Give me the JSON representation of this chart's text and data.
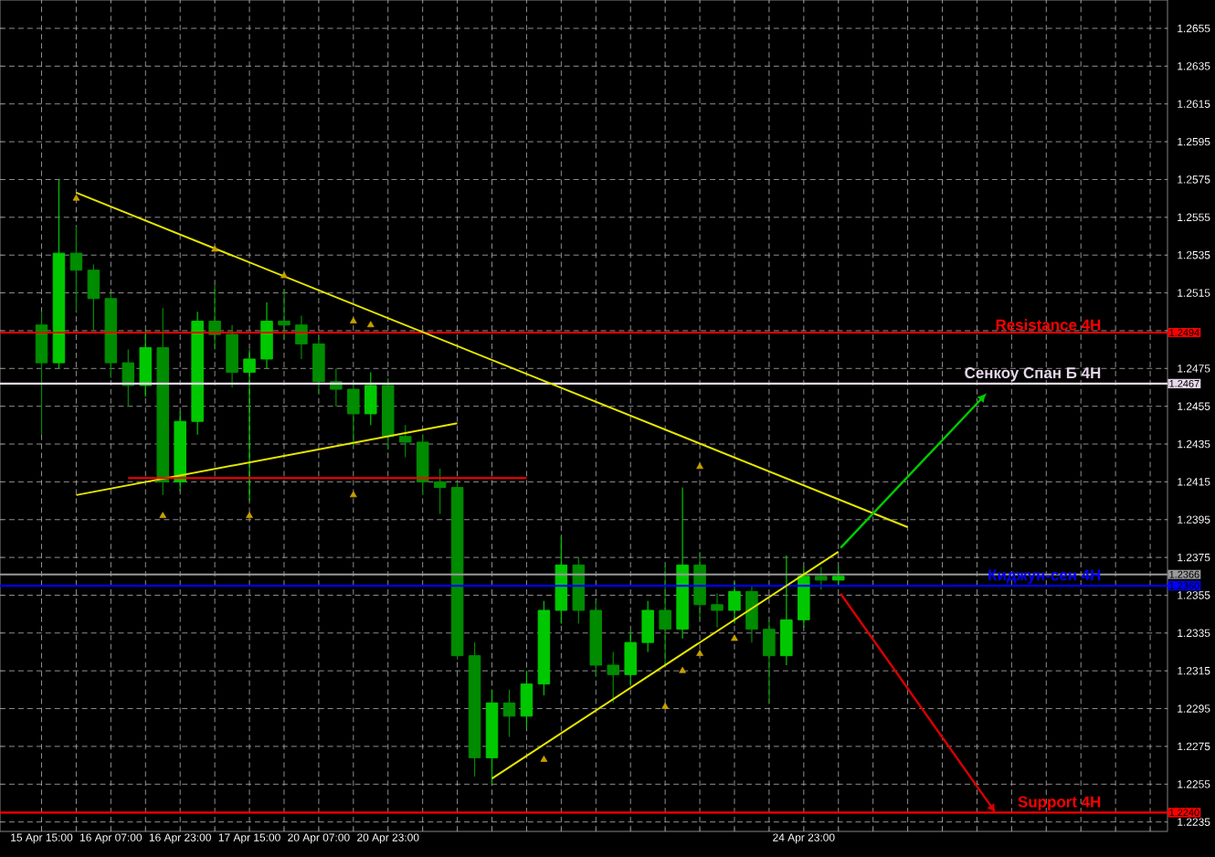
{
  "chart_data": {
    "type": "candlestick",
    "categories": [
      "15 Apr 15:00",
      null,
      null,
      null,
      "16 Apr 07:00",
      null,
      null,
      null,
      "16 Apr 23:00",
      null,
      null,
      null,
      "17 Apr 15:00",
      null,
      null,
      null,
      "20 Apr 07:00",
      null,
      null,
      null,
      "20 Apr 23:00",
      null,
      null,
      null,
      null,
      null,
      null,
      null,
      null,
      null,
      null,
      null,
      null,
      null,
      null,
      null,
      null,
      null,
      null,
      null,
      null,
      null,
      null,
      null,
      "24 Apr 23:00",
      null,
      null,
      null,
      null,
      null,
      null,
      null,
      null,
      null,
      null,
      null,
      null,
      null,
      null,
      null,
      null,
      null,
      null,
      null,
      null
    ],
    "ohlc": [
      [
        1.2498,
        1.2505,
        1.244,
        1.2478
      ],
      [
        1.2478,
        1.2575,
        1.2475,
        1.2536
      ],
      [
        1.2536,
        1.255,
        1.2505,
        1.2527
      ],
      [
        1.2527,
        1.253,
        1.2495,
        1.2512
      ],
      [
        1.2512,
        1.2515,
        1.247,
        1.2478
      ],
      [
        1.2478,
        1.2485,
        1.2455,
        1.2466
      ],
      [
        1.2466,
        1.2495,
        1.246,
        1.2486
      ],
      [
        1.2486,
        1.2507,
        1.2408,
        1.2415
      ],
      [
        1.2415,
        1.2452,
        1.241,
        1.2447
      ],
      [
        1.2447,
        1.2505,
        1.244,
        1.25
      ],
      [
        1.25,
        1.2519,
        1.2485,
        1.2493
      ],
      [
        1.2493,
        1.2498,
        1.2465,
        1.2473
      ],
      [
        1.2473,
        1.2485,
        1.2405,
        1.248
      ],
      [
        1.248,
        1.251,
        1.2475,
        1.25
      ],
      [
        1.25,
        1.2517,
        1.249,
        1.2498
      ],
      [
        1.2498,
        1.2503,
        1.248,
        1.2488
      ],
      [
        1.2488,
        1.2492,
        1.2462,
        1.2468
      ],
      [
        1.2468,
        1.2475,
        1.2455,
        1.2464
      ],
      [
        1.2464,
        1.2468,
        1.2434,
        1.2451
      ],
      [
        1.2451,
        1.2473,
        1.2445,
        1.2466
      ],
      [
        1.2466,
        1.247,
        1.2432,
        1.2439
      ],
      [
        1.2439,
        1.2445,
        1.2428,
        1.2436
      ],
      [
        1.2436,
        1.244,
        1.2408,
        1.2415
      ],
      [
        1.2415,
        1.2422,
        1.2398,
        1.2412
      ],
      [
        1.2412,
        1.2415,
        1.2321,
        1.2323
      ],
      [
        1.2323,
        1.233,
        1.2259,
        1.2269
      ],
      [
        1.2269,
        1.2305,
        1.2255,
        1.2298
      ],
      [
        1.2298,
        1.2305,
        1.228,
        1.2291
      ],
      [
        1.2291,
        1.2315,
        1.2285,
        1.2308
      ],
      [
        1.2308,
        1.2352,
        1.2302,
        1.2347
      ],
      [
        1.2347,
        1.2386,
        1.234,
        1.2371
      ],
      [
        1.2371,
        1.2375,
        1.234,
        1.2347
      ],
      [
        1.2347,
        1.2352,
        1.2312,
        1.2318
      ],
      [
        1.2318,
        1.2325,
        1.2298,
        1.2313
      ],
      [
        1.2313,
        1.2336,
        1.2308,
        1.233
      ],
      [
        1.233,
        1.2352,
        1.2325,
        1.2347
      ],
      [
        1.2347,
        1.2371,
        1.2318,
        1.2337
      ],
      [
        1.2337,
        1.2412,
        1.2332,
        1.2371
      ],
      [
        1.2371,
        1.2378,
        1.2342,
        1.235
      ],
      [
        1.235,
        1.2356,
        1.2338,
        1.2347
      ],
      [
        1.2347,
        1.2362,
        1.234,
        1.2357
      ],
      [
        1.2357,
        1.236,
        1.233,
        1.2337
      ],
      [
        1.2337,
        1.2342,
        1.2298,
        1.2323
      ],
      [
        1.2323,
        1.2376,
        1.2318,
        1.2342
      ],
      [
        1.2342,
        1.237,
        1.2338,
        1.2365
      ],
      [
        1.2365,
        1.237,
        1.2358,
        1.2363
      ],
      [
        1.2363,
        1.237,
        1.236,
        1.2365
      ],
      null,
      null,
      null,
      null,
      null,
      null,
      null,
      null,
      null,
      null,
      null,
      null,
      null,
      null,
      null,
      null,
      null,
      null
    ],
    "colors": [
      "#008c00",
      "#00c800",
      "#008c00",
      "#008c00",
      "#008c00",
      "#008c00",
      "#00c800",
      "#008c00",
      "#00c800",
      "#00c800",
      "#008c00",
      "#008c00",
      "#00c800",
      "#00c800",
      "#008c00",
      "#008c00",
      "#008c00",
      "#008c00",
      "#008c00",
      "#00c800",
      "#008c00",
      "#008c00",
      "#008c00",
      "#008c00",
      "#008c00",
      "#008c00",
      "#00c800",
      "#008c00",
      "#00c800",
      "#00c800",
      "#00c800",
      "#008c00",
      "#008c00",
      "#008c00",
      "#00c800",
      "#00c800",
      "#008c00",
      "#00c800",
      "#008c00",
      "#008c00",
      "#00c800",
      "#008c00",
      "#008c00",
      "#00c800",
      "#00c800",
      "#008c00",
      "#00c800",
      null,
      null,
      null,
      null,
      null,
      null,
      null,
      null,
      null,
      null,
      null,
      null,
      null,
      null,
      null,
      null,
      null,
      null
    ],
    "series": [
      {
        "type": "line",
        "color": "#e6e600",
        "values": [
          null,
          null,
          1.2568,
          null,
          null,
          null,
          null,
          null,
          null,
          null,
          null,
          null,
          null,
          null,
          null,
          null,
          null,
          null,
          null,
          null,
          null,
          null,
          null,
          null,
          null,
          null,
          null,
          null,
          null,
          null,
          null,
          null,
          null,
          null,
          null,
          null,
          null,
          null,
          null,
          null,
          null,
          null,
          null,
          null,
          null,
          null,
          null,
          null,
          null,
          null,
          1.2391,
          null,
          null,
          null,
          null,
          null,
          null,
          null,
          null,
          null,
          null,
          null,
          null,
          null,
          null
        ]
      },
      {
        "type": "line",
        "color": "#e6e600",
        "values": [
          null,
          null,
          1.2408,
          null,
          null,
          null,
          null,
          null,
          null,
          null,
          null,
          null,
          null,
          null,
          null,
          null,
          null,
          null,
          null,
          null,
          null,
          null,
          null,
          null,
          1.2446,
          null,
          null,
          null,
          null,
          null,
          null,
          null,
          null,
          null,
          null,
          null,
          null,
          null,
          null,
          null,
          null,
          null,
          null,
          null,
          null,
          null,
          null,
          null,
          null,
          null,
          null,
          null,
          null,
          null,
          null,
          null,
          null,
          null,
          null,
          null,
          null,
          null,
          null,
          null,
          null
        ]
      },
      {
        "type": "line",
        "color": "#e6e600",
        "values": [
          null,
          null,
          null,
          null,
          null,
          null,
          null,
          null,
          null,
          null,
          null,
          null,
          null,
          null,
          null,
          null,
          null,
          null,
          null,
          null,
          null,
          null,
          null,
          null,
          null,
          null,
          1.2258,
          null,
          null,
          null,
          null,
          null,
          null,
          null,
          null,
          null,
          null,
          null,
          null,
          null,
          null,
          null,
          null,
          null,
          null,
          null,
          1.2378,
          null,
          null,
          null,
          null,
          null,
          null,
          null,
          null,
          null,
          null,
          null,
          null,
          null,
          null,
          null,
          null,
          null,
          null
        ]
      },
      {
        "type": "line",
        "color": "#ff0000",
        "values": [
          null,
          null,
          null,
          null,
          null,
          1.2417,
          null,
          null,
          null,
          null,
          null,
          null,
          null,
          null,
          null,
          null,
          null,
          null,
          null,
          null,
          null,
          null,
          null,
          null,
          null,
          null,
          null,
          null,
          1.2417,
          null,
          null,
          null,
          null,
          null,
          null,
          null,
          null,
          null,
          null,
          null,
          null,
          null,
          null,
          null,
          null,
          null,
          null,
          null,
          null,
          null,
          null,
          null,
          null,
          null,
          null,
          null,
          null,
          null,
          null,
          null,
          null,
          null,
          null,
          null,
          null
        ]
      },
      {
        "type": "scatter",
        "color": "#c8a000",
        "marker": "triangle",
        "values": [
          null,
          null,
          1.2565,
          null,
          null,
          null,
          null,
          null,
          null,
          null,
          1.2538,
          null,
          null,
          null,
          1.2524,
          null,
          null,
          null,
          1.25,
          1.2498,
          null,
          null,
          null,
          null,
          null,
          null,
          null,
          null,
          null,
          null,
          null,
          null,
          null,
          null,
          null,
          null,
          null,
          null,
          1.2423,
          null,
          null,
          null,
          null,
          null,
          null,
          null,
          null,
          null,
          null,
          null,
          null,
          null,
          null,
          null,
          null,
          null,
          null,
          null,
          null,
          null,
          null,
          null,
          null,
          null,
          null
        ]
      },
      {
        "type": "scatter",
        "color": "#c8a000",
        "marker": "triangle",
        "values": [
          null,
          null,
          null,
          null,
          null,
          null,
          null,
          1.2397,
          null,
          null,
          null,
          null,
          1.2397,
          null,
          null,
          null,
          null,
          null,
          1.2408,
          null,
          null,
          null,
          null,
          null,
          null,
          null,
          null,
          null,
          null,
          1.2268,
          null,
          null,
          null,
          null,
          null,
          null,
          1.2296,
          1.2315,
          1.2324,
          null,
          1.2332,
          null,
          null,
          null,
          null,
          null,
          null,
          null,
          null,
          null,
          null,
          null,
          null,
          null,
          null,
          null,
          null,
          null,
          null,
          null,
          null,
          null,
          null,
          null,
          null
        ]
      }
    ],
    "ref_lines": [
      {
        "axis": "y",
        "value": 1.2494,
        "label": "Resistance 4H",
        "color": "#ff0000"
      },
      {
        "axis": "y",
        "value": 1.2467,
        "label": "Сенкоу Спан Б 4H",
        "color": "#e6d8ea"
      },
      {
        "axis": "y",
        "value": 1.2366,
        "color": "#9a9a9a"
      },
      {
        "axis": "y",
        "value": 1.236,
        "label": "Киджун-сен 4H",
        "color": "#0000ff"
      },
      {
        "axis": "y",
        "value": 1.224,
        "label": "Support 4H",
        "color": "#ff0000"
      }
    ],
    "annotations": [
      "1.2494",
      "1.2467",
      "1.2366",
      "1.2360",
      "1.2240"
    ],
    "ylim": [
      1.223,
      1.267
    ],
    "yticks": [
      1.2235,
      1.2255,
      1.2275,
      1.2295,
      1.2315,
      1.2335,
      1.2355,
      1.2375,
      1.2395,
      1.2415,
      1.2435,
      1.2455,
      1.2475,
      {
        "value": 1.2495,
        "label": null
      },
      1.2515,
      1.2535,
      1.2555,
      1.2575,
      1.2595,
      1.2615,
      1.2635,
      1.2655
    ],
    "grid": true
  }
}
